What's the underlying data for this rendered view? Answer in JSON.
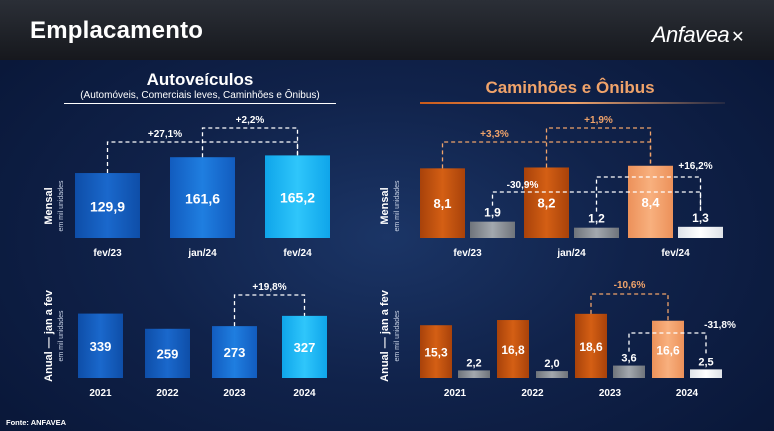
{
  "header": {
    "title": "Emplacamento",
    "logo_text": "Anfavea"
  },
  "colors": {
    "blue_dark": "#1560c0",
    "blue_mid": "#1a74d8",
    "blue_light": "#18b8f5",
    "orange_dark": "#c7520f",
    "orange_light": "#f4a26a",
    "gray": "#8a8f96",
    "white_bar": "#ffffff",
    "annotation_orange": "#f0a36a",
    "annotation_white": "#ffffff"
  },
  "left_panel": {
    "title": "Autoveículos",
    "subtitle": "(Automóveis, Comerciais leves, Caminhões e Ônibus)"
  },
  "right_panel": {
    "title": "Caminhões e Ônibus"
  },
  "source": "Fonte: ANFAVEA",
  "chart_data": [
    {
      "type": "bar",
      "panel": "Autoveículos",
      "ylabel": "Mensal",
      "ylabel_sub": "em mil unidades",
      "categories": [
        "fev/23",
        "jan/24",
        "fev/24"
      ],
      "values": [
        129.9,
        161.6,
        165.2
      ],
      "value_labels": [
        "129,9",
        "161,6",
        "165,2"
      ],
      "annotations": [
        {
          "text": "+27,1%",
          "from": "fev/23",
          "to": "fev/24",
          "color": "white"
        },
        {
          "text": "+2,2%",
          "from": "jan/24",
          "to": "fev/24",
          "color": "white"
        }
      ]
    },
    {
      "type": "bar",
      "panel": "Autoveículos",
      "ylabel": "Anual — jan a fev",
      "ylabel_sub": "em mil unidades",
      "categories": [
        "2021",
        "2022",
        "2023",
        "2024"
      ],
      "values": [
        339,
        259,
        273,
        327
      ],
      "value_labels": [
        "339",
        "259",
        "273",
        "327"
      ],
      "annotations": [
        {
          "text": "+19,8%",
          "from": "2023",
          "to": "2024",
          "color": "white"
        }
      ]
    },
    {
      "type": "bar",
      "panel": "Caminhões e Ônibus",
      "ylabel": "Mensal",
      "ylabel_sub": "em mil unidades",
      "categories": [
        "fev/23",
        "jan/24",
        "fev/24"
      ],
      "series": [
        {
          "values": [
            8.1,
            8.2,
            8.4
          ],
          "value_labels": [
            "8,1",
            "8,2",
            "8,4"
          ]
        },
        {
          "values": [
            1.9,
            1.2,
            1.3
          ],
          "value_labels": [
            "1,9",
            "1,2",
            "1,3"
          ]
        }
      ],
      "annotations": [
        {
          "text": "+3,3%",
          "series": 0,
          "from": "fev/23",
          "to": "fev/24",
          "color": "orange"
        },
        {
          "text": "+1,9%",
          "series": 0,
          "from": "jan/24",
          "to": "fev/24",
          "color": "orange"
        },
        {
          "text": "-30,9%",
          "series": 1,
          "from": "fev/23",
          "to": "fev/24",
          "color": "white"
        },
        {
          "text": "+16,2%",
          "series": 1,
          "from": "jan/24",
          "to": "fev/24",
          "color": "white"
        }
      ]
    },
    {
      "type": "bar",
      "panel": "Caminhões e Ônibus",
      "ylabel": "Anual — jan a fev",
      "ylabel_sub": "em mil unidades",
      "categories": [
        "2021",
        "2022",
        "2023",
        "2024"
      ],
      "series": [
        {
          "values": [
            15.3,
            16.8,
            18.6,
            16.6
          ],
          "value_labels": [
            "15,3",
            "16,8",
            "18,6",
            "16,6"
          ]
        },
        {
          "values": [
            2.2,
            2.0,
            3.6,
            2.5
          ],
          "value_labels": [
            "2,2",
            "2,0",
            "3,6",
            "2,5"
          ]
        }
      ],
      "annotations": [
        {
          "text": "-10,6%",
          "series": 0,
          "from": "2023",
          "to": "2024",
          "color": "orange"
        },
        {
          "text": "-31,8%",
          "series": 1,
          "from": "2023",
          "to": "2024",
          "color": "white"
        }
      ]
    }
  ]
}
